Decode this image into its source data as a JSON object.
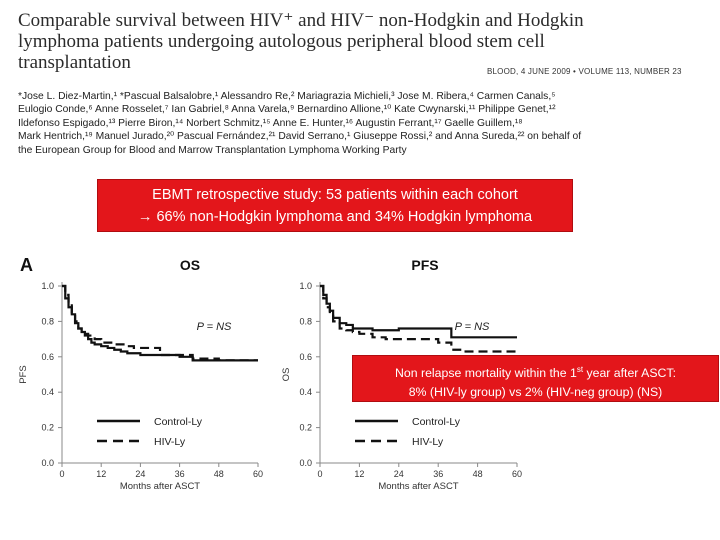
{
  "header": {
    "title_line1": "Comparable survival between HIV⁺ and HIV⁻ non-Hodgkin and Hodgkin",
    "title_line2": "lymphoma patients undergoing autologous peripheral blood stem cell",
    "title_line3": "transplantation",
    "journal": "BLOOD, 4 JUNE 2009 • VOLUME 113, NUMBER 23",
    "authors": [
      "*Jose L. Diez-Martin,¹ *Pascual Balsalobre,¹ Alessandro Re,² Mariagrazia Michieli,³ Jose M. Ribera,⁴ Carmen Canals,⁵",
      "Eulogio Conde,⁶ Anne Rosselet,⁷ Ian Gabriel,⁸ Anna Varela,⁹ Bernardino Allione,¹⁰ Kate Cwynarski,¹¹ Philippe Genet,¹²",
      "Ildefonso Espigado,¹³ Pierre Biron,¹⁴ Norbert Schmitz,¹⁵ Anne E. Hunter,¹⁶ Augustin Ferrant,¹⁷ Gaelle Guillem,¹⁸",
      "Mark Hentrich,¹⁹ Manuel Jurado,²⁰ Pascual Fernández,²¹ David Serrano,¹ Giuseppe Rossi,² and Anna Sureda,²² on behalf of",
      "the European Group for Blood and Marrow Transplantation Lymphoma Working Party"
    ]
  },
  "callout1": {
    "line1": "EBMT retrospective study: 53 patients within each cohort",
    "line2": "→ 66% non-Hodgkin lymphoma and 34% Hodgkin lymphoma"
  },
  "callout2": {
    "line1_pre": "Non relapse mortality within the 1",
    "line1_sup": "st",
    "line1_post": " year after ASCT:",
    "line2": "8% (HIV-ly group) vs 2% (HIV-neg group) (NS)"
  },
  "colors": {
    "callout_bg": "#e3161b",
    "callout_text": "#ffffff"
  },
  "chart_data": [
    {
      "type": "line",
      "panel_letter": "A",
      "title": "OS",
      "xlabel": "Months after ASCT",
      "ylabel": "PFS",
      "xlim": [
        0,
        60
      ],
      "ylim": [
        0,
        1.0
      ],
      "xticks": [
        "0",
        "12",
        "24",
        "36",
        "48",
        "60"
      ],
      "yticks": [
        "0.0",
        "0.2",
        "0.4",
        "0.6",
        "0.8",
        "1.0"
      ],
      "annotation": "P = NS",
      "legend_position": "bottom-left",
      "series": [
        {
          "name": "Control-Ly",
          "style": "solid",
          "x": [
            0,
            1,
            2,
            3,
            4,
            5,
            6,
            7,
            8,
            9,
            10,
            12,
            14,
            16,
            18,
            20,
            24,
            30,
            36,
            40,
            48,
            54,
            60
          ],
          "y": [
            1.0,
            0.93,
            0.88,
            0.84,
            0.79,
            0.76,
            0.74,
            0.72,
            0.7,
            0.68,
            0.67,
            0.66,
            0.65,
            0.64,
            0.63,
            0.62,
            0.61,
            0.61,
            0.6,
            0.58,
            0.58,
            0.58,
            0.58
          ]
        },
        {
          "name": "HIV-Ly",
          "style": "dashed",
          "x": [
            0,
            1,
            2,
            3,
            4,
            5,
            6,
            8,
            10,
            12,
            14,
            16,
            18,
            20,
            22,
            24,
            30,
            36,
            40,
            48,
            54,
            60
          ],
          "y": [
            1.0,
            0.95,
            0.9,
            0.85,
            0.8,
            0.76,
            0.73,
            0.72,
            0.7,
            0.68,
            0.68,
            0.67,
            0.67,
            0.66,
            0.65,
            0.65,
            0.61,
            0.61,
            0.59,
            0.58,
            0.58,
            0.58
          ]
        }
      ]
    },
    {
      "type": "line",
      "title": "PFS",
      "xlabel": "Months after ASCT",
      "ylabel": "OS",
      "xlim": [
        0,
        60
      ],
      "ylim": [
        0,
        1.0
      ],
      "xticks": [
        "0",
        "12",
        "24",
        "36",
        "48",
        "60"
      ],
      "yticks": [
        "0.0",
        "0.2",
        "0.4",
        "0.6",
        "0.8",
        "1.0"
      ],
      "annotation": "P = NS",
      "legend_position": "bottom-left",
      "series": [
        {
          "name": "Control-Ly",
          "style": "solid",
          "x": [
            0,
            1,
            2,
            3,
            4,
            6,
            8,
            10,
            12,
            16,
            20,
            24,
            28,
            32,
            36,
            40,
            48,
            54,
            60
          ],
          "y": [
            1.0,
            0.95,
            0.9,
            0.86,
            0.82,
            0.79,
            0.78,
            0.76,
            0.76,
            0.75,
            0.75,
            0.76,
            0.76,
            0.76,
            0.76,
            0.71,
            0.71,
            0.71,
            0.71
          ]
        },
        {
          "name": "HIV-Ly",
          "style": "dashed",
          "x": [
            0,
            1,
            2,
            3,
            4,
            6,
            8,
            10,
            12,
            16,
            20,
            24,
            28,
            32,
            36,
            40,
            44,
            48,
            54,
            60
          ],
          "y": [
            1.0,
            0.93,
            0.88,
            0.84,
            0.8,
            0.76,
            0.75,
            0.74,
            0.73,
            0.71,
            0.7,
            0.7,
            0.7,
            0.7,
            0.68,
            0.64,
            0.63,
            0.63,
            0.63,
            0.63
          ]
        }
      ]
    }
  ]
}
